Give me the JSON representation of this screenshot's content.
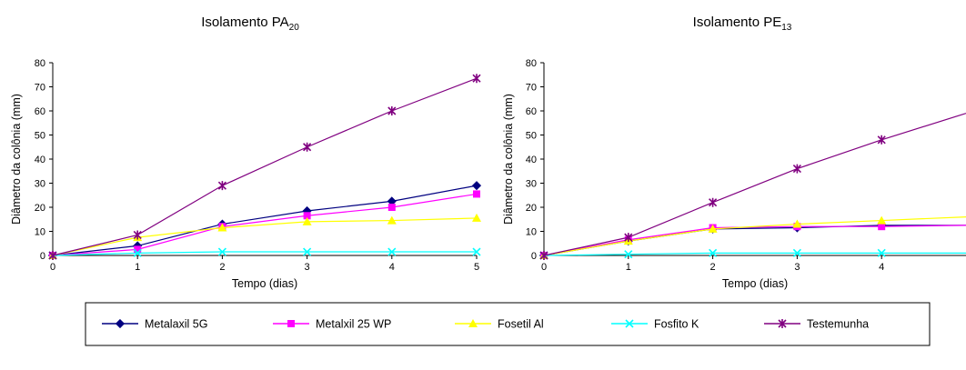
{
  "legend": {
    "entries": [
      {
        "name": "Metalaxil 5G",
        "color": "#000080",
        "marker": "diamond"
      },
      {
        "name": "Metalxil 25 WP",
        "color": "#ff00ff",
        "marker": "square"
      },
      {
        "name": "Fosetil Al",
        "color": "#ffff00",
        "marker": "triangle"
      },
      {
        "name": "Fosfito K",
        "color": "#00ffff",
        "marker": "asterisk-x"
      },
      {
        "name": "Testemunha",
        "color": "#800080",
        "marker": "asterisk-star"
      }
    ]
  },
  "chart_data": [
    {
      "type": "line",
      "title": "Isolamento PA",
      "title_subscript": "20",
      "xlabel": "Tempo (dias)",
      "ylabel": "Diâmetro da colônia (mm)",
      "x": [
        0,
        1,
        2,
        3,
        4,
        5
      ],
      "xticks": [
        "0",
        "1",
        "2",
        "3",
        "4",
        "5"
      ],
      "xlim": [
        0,
        5
      ],
      "ylim": [
        0,
        80
      ],
      "yticks": [
        "0",
        "10",
        "20",
        "30",
        "40",
        "50",
        "60",
        "70",
        "80"
      ],
      "grid": false,
      "series": [
        {
          "name": "Metalaxil 5G",
          "values": [
            0,
            4,
            13,
            18.5,
            22.5,
            29
          ]
        },
        {
          "name": "Metalxil 25 WP",
          "values": [
            0,
            2.5,
            12,
            16.5,
            20,
            25.5
          ]
        },
        {
          "name": "Fosetil Al",
          "values": [
            0,
            7.5,
            11.5,
            14,
            14.5,
            15.5
          ]
        },
        {
          "name": "Fosfito K",
          "values": [
            0,
            1,
            1.5,
            1.5,
            1.5,
            1.5
          ]
        },
        {
          "name": "Testemunha",
          "values": [
            0,
            8.5,
            29,
            45,
            60,
            73.5
          ]
        }
      ]
    },
    {
      "type": "line",
      "title": "Isolamento PE",
      "title_subscript": "13",
      "xlabel": "Tempo (dias)",
      "ylabel": "Diâmetro da colônia (mm)",
      "x": [
        0,
        1,
        2,
        3,
        4,
        5
      ],
      "xticks": [
        "0",
        "1",
        "2",
        "3",
        "4"
      ],
      "xlim": [
        0,
        5
      ],
      "ylim": [
        0,
        80
      ],
      "yticks": [
        "0",
        "10",
        "20",
        "30",
        "40",
        "50",
        "60",
        "70",
        "80"
      ],
      "grid": false,
      "series": [
        {
          "name": "Metalaxil 5G",
          "values": [
            0,
            6,
            11,
            11.5,
            12.5,
            12.5
          ]
        },
        {
          "name": "Metalxil 25 WP",
          "values": [
            0,
            6.5,
            11.5,
            12,
            12,
            12.5
          ]
        },
        {
          "name": "Fosetil Al",
          "values": [
            0,
            6,
            11,
            13,
            14.5,
            16
          ]
        },
        {
          "name": "Fosfito K",
          "values": [
            0,
            0.5,
            1,
            1,
            1,
            1
          ]
        },
        {
          "name": "Testemunha",
          "values": [
            0,
            7.5,
            22,
            36,
            48,
            59
          ]
        }
      ]
    }
  ]
}
